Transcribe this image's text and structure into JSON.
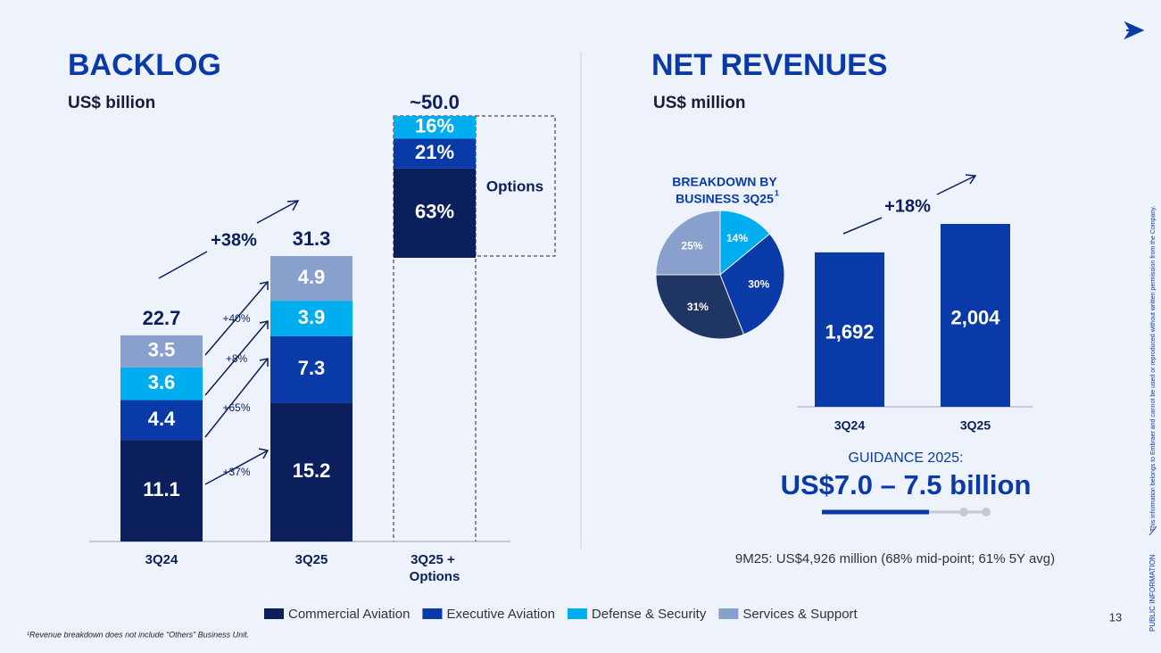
{
  "chart_data": [
    {
      "type": "stacked_bar",
      "title": "BACKLOG",
      "subtitle": "US$ billion",
      "categories": [
        "3Q24",
        "3Q25",
        "3Q25 + Options"
      ],
      "series": [
        {
          "name": "Commercial Aviation",
          "color": "#0b1f5c",
          "values": [
            11.1,
            15.2,
            null
          ]
        },
        {
          "name": "Executive Aviation",
          "color": "#0a3aa8",
          "values": [
            4.4,
            7.3,
            null
          ]
        },
        {
          "name": "Defense & Security",
          "color": "#00aeef",
          "values": [
            3.6,
            3.9,
            null
          ]
        },
        {
          "name": "Services & Support",
          "color": "#8aa0cc",
          "values": [
            3.5,
            4.9,
            null
          ]
        }
      ],
      "totals": [
        22.7,
        31.3,
        null
      ],
      "options": {
        "label": "Options",
        "total_label": "~50.0",
        "values": [
          63,
          21,
          16
        ],
        "value_labels": [
          "63%",
          "21%",
          "16%"
        ]
      },
      "growth": {
        "total": "+38%",
        "segments": [
          "+37%",
          "+65%",
          "+8%",
          "+40%"
        ]
      }
    },
    {
      "type": "pie",
      "title_lines": [
        "BREAKDOWN BY",
        "BUSINESS 3Q25"
      ],
      "title_note": "1",
      "values": [
        14,
        30,
        31,
        25
      ],
      "value_labels": [
        "14%",
        "30%",
        "31%",
        "25%"
      ],
      "colors": [
        "#00aeef",
        "#0a3aa8",
        "#1f3563",
        "#8aa0cc"
      ]
    },
    {
      "type": "bar",
      "title": "NET REVENUES",
      "subtitle": "US$ million",
      "categories": [
        "3Q24",
        "3Q25"
      ],
      "values": [
        1692,
        2004
      ],
      "value_labels": [
        "1,692",
        "2,004"
      ],
      "color": "#0a3aa8",
      "growth": "+18%"
    }
  ],
  "guidance": {
    "label": "GUIDANCE 2025:",
    "value": "US$7.0 – 7.5 billion",
    "note": "9M25: US$4,926 million (68% mid-point; 61% 5Y avg)"
  },
  "footnote": "¹Revenue breakdown does not include “Others” Business Unit.",
  "page_number": "13",
  "side": {
    "label": "PUBLIC INFORMATION",
    "text": "This information belongs to Embraer and cannot be used or reproduced without written permission from the Company."
  }
}
